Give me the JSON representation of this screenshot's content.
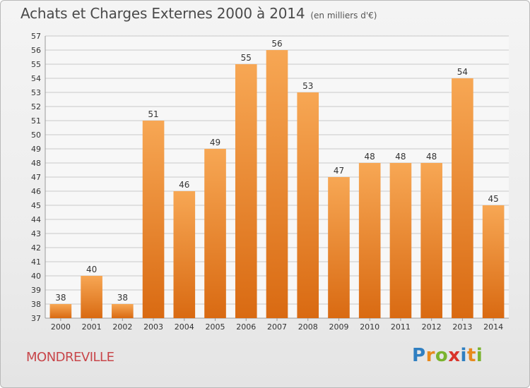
{
  "header": {
    "title": "Achats et Charges Externes 2000 à 2014",
    "subtitle": "(en milliers d'€)"
  },
  "footer": {
    "commune": "MONDREVILLE",
    "logo": {
      "letters": [
        "P",
        "r",
        "o",
        "x",
        "i",
        "t",
        "i"
      ],
      "colors": [
        "#2f7fc1",
        "#e8891c",
        "#7ab32e",
        "#d9342b",
        "#2f7fc1",
        "#e8891c",
        "#7ab32e"
      ]
    }
  },
  "colors": {
    "bar_top": "#f7a754",
    "bar_bottom": "#d96a12",
    "grid": "#c8c8c8",
    "axis_text": "#333333",
    "commune": "#c8464a"
  },
  "chart_data": {
    "type": "bar",
    "categories": [
      "2000",
      "2001",
      "2002",
      "2003",
      "2004",
      "2005",
      "2006",
      "2007",
      "2008",
      "2009",
      "2010",
      "2011",
      "2012",
      "2013",
      "2014"
    ],
    "values": [
      38,
      40,
      38,
      51,
      46,
      49,
      55,
      56,
      53,
      47,
      48,
      48,
      48,
      54,
      45
    ],
    "title": "Achats et Charges Externes 2000 à 2014",
    "ylim": [
      37,
      57
    ],
    "yticks": [
      37,
      38,
      39,
      40,
      41,
      42,
      43,
      44,
      45,
      46,
      47,
      48,
      49,
      50,
      51,
      52,
      53,
      54,
      55,
      56,
      57
    ],
    "grid": true,
    "data_labels": true
  }
}
